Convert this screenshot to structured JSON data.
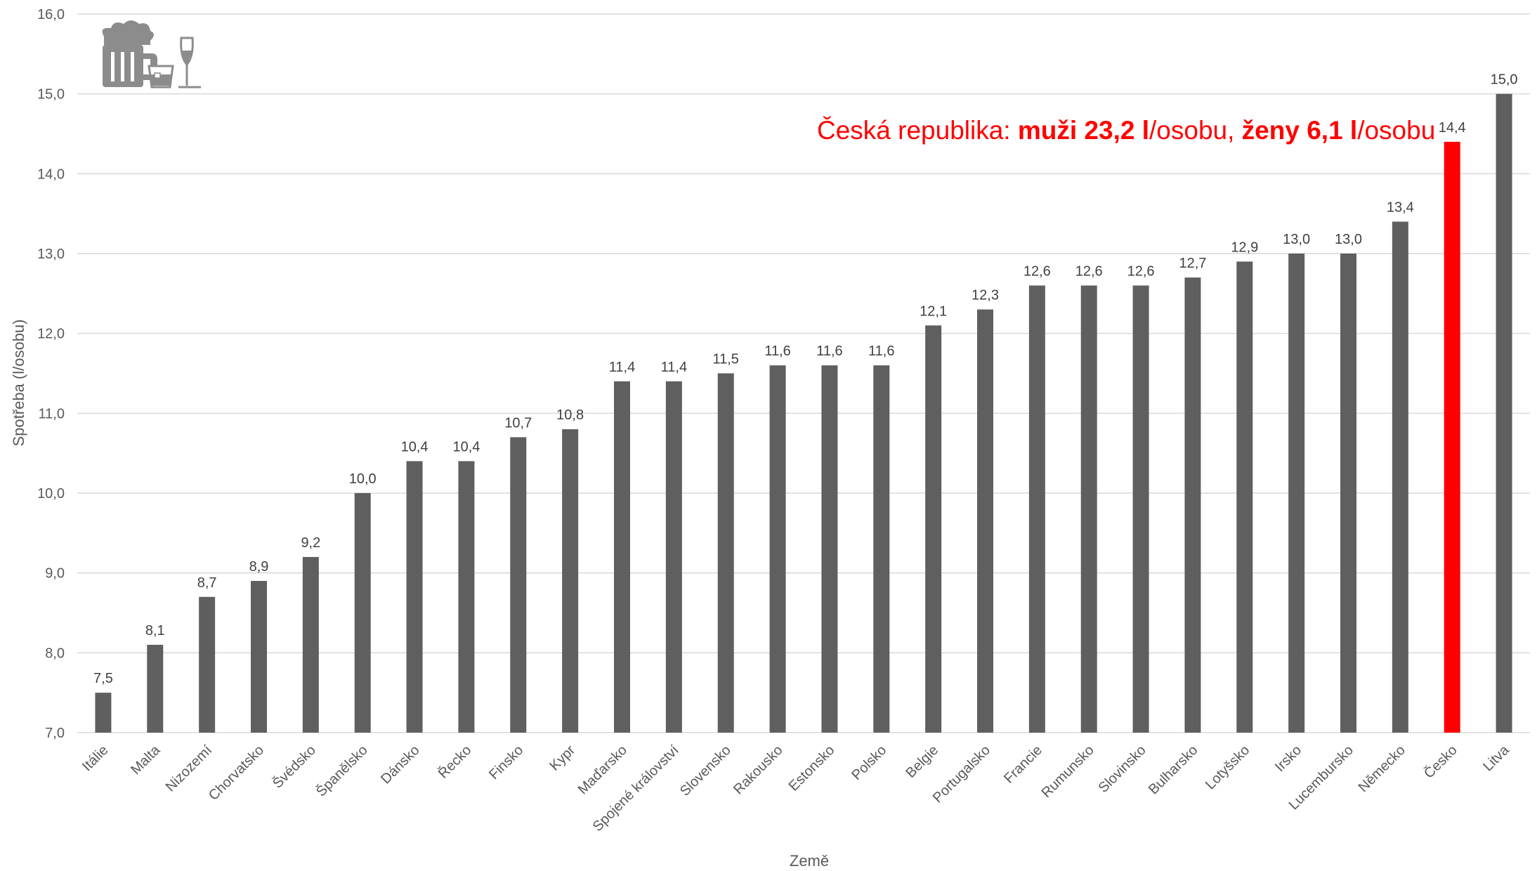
{
  "chart_data": {
    "type": "bar",
    "title": "",
    "xlabel": "Země",
    "ylabel": "Spotřeba (l/osobu)",
    "ylim": [
      7.0,
      16.0
    ],
    "ytick_step": 1.0,
    "grid": true,
    "categories": [
      "Itálie",
      "Malta",
      "Nizozemí",
      "Chorvatsko",
      "Švédsko",
      "Španělsko",
      "Dánsko",
      "Řecko",
      "Finsko",
      "Kypr",
      "Maďarsko",
      "Spojené království",
      "Slovensko",
      "Rakousko",
      "Estonsko",
      "Polsko",
      "Belgie",
      "Portugalsko",
      "Francie",
      "Rumunsko",
      "Slovinsko",
      "Bulharsko",
      "Lotyšsko",
      "Irsko",
      "Lucembursko",
      "Německo",
      "Česko",
      "Litva"
    ],
    "values": [
      7.5,
      8.1,
      8.7,
      8.9,
      9.2,
      10.0,
      10.4,
      10.4,
      10.7,
      10.8,
      11.4,
      11.4,
      11.5,
      11.6,
      11.6,
      11.6,
      12.1,
      12.3,
      12.6,
      12.6,
      12.6,
      12.7,
      12.9,
      13.0,
      13.0,
      13.4,
      14.4,
      15.0
    ],
    "highlight_category": "Česko",
    "colors": {
      "bar": "#5f5f5f",
      "highlight": "#ff0000",
      "grid": "#d9d9d9"
    }
  },
  "annotation": {
    "prefix": "Česká republika: ",
    "men_bold": "muži 23,2 l",
    "men_rest": "/osobu, ",
    "women_bold": "ženy 6,1 l",
    "women_rest": "/osobu",
    "color": "#ff0000"
  },
  "icons": [
    "beer-mug-icon",
    "whisky-glass-icon",
    "wine-glass-icon"
  ]
}
